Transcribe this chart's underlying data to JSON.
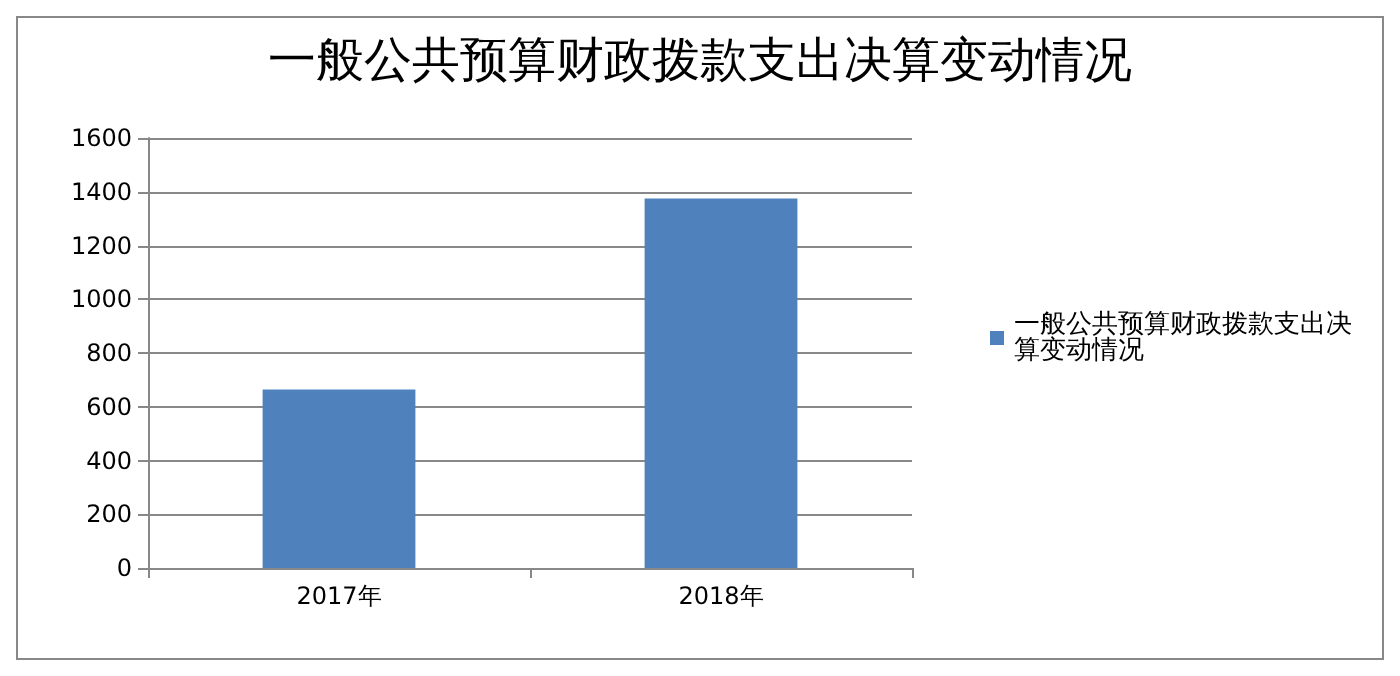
{
  "chart_data": {
    "type": "bar",
    "title": "一般公共预算财政拨款支出决算变动情况",
    "categories": [
      "2017年",
      "2018年"
    ],
    "series": [
      {
        "name": "一般公共预算财政拨款支出决算变动情况",
        "color": "#4f81bd",
        "values": [
          664,
          1375
        ]
      }
    ],
    "ylim": [
      0,
      1600
    ],
    "yticks": [
      0,
      200,
      400,
      600,
      800,
      1000,
      1200,
      1400,
      1600
    ],
    "grid": "y",
    "legend": "right"
  }
}
